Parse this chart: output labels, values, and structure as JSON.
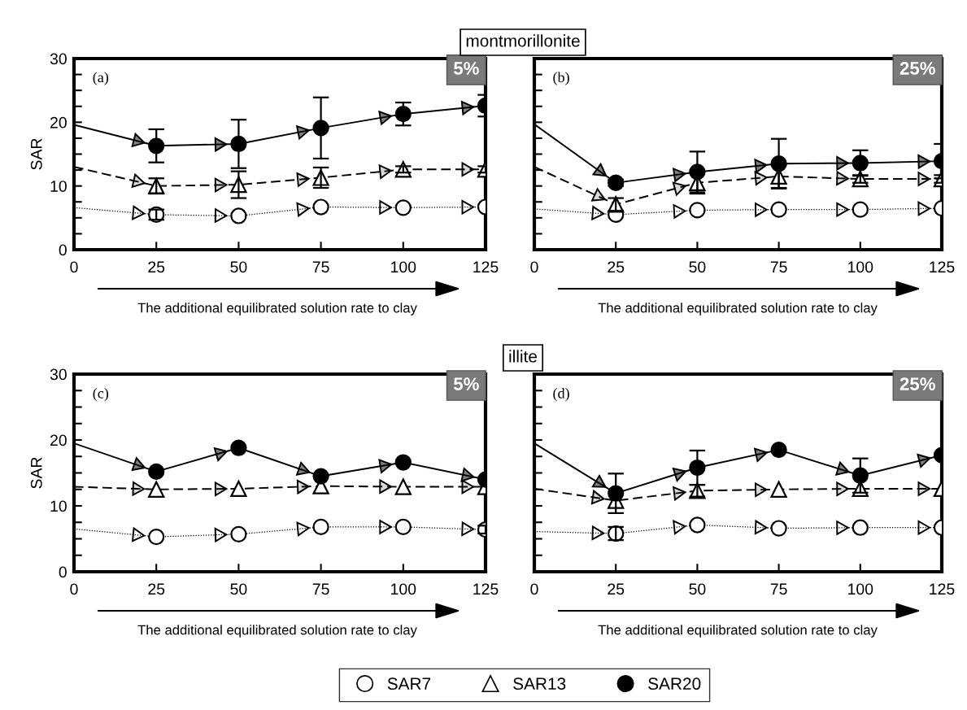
{
  "chart_data": [
    {
      "type": "line",
      "xlabel": "The additional equilibrated solution rate to clay",
      "ylabel": "SAR",
      "annotations": [
        "(a)",
        "5%",
        "montmorillonite"
      ],
      "x": [
        0,
        25,
        50,
        75,
        100,
        125
      ],
      "xlim": [
        0,
        125
      ],
      "xticks": [
        0,
        25,
        50,
        75,
        100,
        125
      ],
      "ylim": [
        0,
        30
      ],
      "yticks": [
        0,
        {
          "value": 2.5,
          "label": null
        },
        {
          "value": 5,
          "label": null
        },
        {
          "value": 7.5,
          "label": null
        },
        10,
        {
          "value": 12.5,
          "label": null
        },
        {
          "value": 15,
          "label": null
        },
        {
          "value": 17.5,
          "label": null
        },
        20,
        {
          "value": 22.5,
          "label": null
        },
        {
          "value": 25,
          "label": null
        },
        {
          "value": 27.5,
          "label": null
        },
        30
      ],
      "grid": false,
      "legend": false,
      "series": [
        {
          "color": "#ffffff",
          "marker": "circle",
          "line_style": "dotted",
          "values": [
            6.6,
            5.5,
            5.3,
            6.7,
            6.6,
            6.7
          ],
          "errors": [
            null,
            0.8,
            null,
            null,
            null,
            null
          ]
        },
        {
          "color": "#ffffff",
          "marker": "triangle",
          "line_style": "dashed",
          "values": [
            13.0,
            10.0,
            10.2,
            11.3,
            12.6,
            12.6
          ],
          "errors": [
            null,
            1.2,
            2.1,
            1.6,
            0.5,
            0.5
          ]
        },
        {
          "color": "#000000",
          "marker": "circle",
          "line_style": "solid",
          "values": [
            19.6,
            16.3,
            16.6,
            19.1,
            21.3,
            22.6
          ],
          "errors": [
            null,
            2.6,
            3.8,
            4.8,
            1.8,
            1.7
          ]
        }
      ]
    },
    {
      "type": "line",
      "xlabel": "The additional equilibrated solution rate to clay",
      "annotations": [
        "(b)",
        "25%"
      ],
      "x": [
        0,
        25,
        50,
        75,
        100,
        125
      ],
      "xlim": [
        0,
        125
      ],
      "xticks": [
        0,
        25,
        50,
        75,
        100,
        125
      ],
      "ylim": [
        0,
        30
      ],
      "yticks": [
        0,
        {
          "value": 2.5,
          "label": null
        },
        {
          "value": 5,
          "label": null
        },
        {
          "value": 7.5,
          "label": null
        },
        10,
        {
          "value": 12.5,
          "label": null
        },
        {
          "value": 15,
          "label": null
        },
        {
          "value": 17.5,
          "label": null
        },
        20,
        {
          "value": 22.5,
          "label": null
        },
        {
          "value": 25,
          "label": null
        },
        {
          "value": 27.5,
          "label": null
        },
        30
      ],
      "tick_labels": "x",
      "grid": false,
      "legend": false,
      "series": [
        {
          "color": "#ffffff",
          "marker": "circle",
          "line_style": "dotted",
          "values": [
            6.4,
            5.5,
            6.2,
            6.3,
            6.3,
            6.5
          ]
        },
        {
          "color": "#ffffff",
          "marker": "triangle",
          "line_style": "dashed",
          "values": [
            13.0,
            7.1,
            10.5,
            11.5,
            11.1,
            11.1
          ],
          "errors": [
            null,
            1.0,
            1.7,
            1.8,
            0.6,
            0.6
          ]
        },
        {
          "color": "#000000",
          "marker": "circle",
          "line_style": "solid",
          "values": [
            19.7,
            10.5,
            12.2,
            13.5,
            13.6,
            13.9
          ],
          "errors": [
            null,
            0.5,
            3.2,
            3.9,
            2.0,
            2.7
          ]
        }
      ]
    },
    {
      "type": "line",
      "xlabel": "The additional equilibrated solution rate to clay",
      "ylabel": "SAR",
      "annotations": [
        "(c)",
        "5%",
        "illite"
      ],
      "x": [
        0,
        25,
        50,
        75,
        100,
        125
      ],
      "xlim": [
        0,
        125
      ],
      "xticks": [
        0,
        25,
        50,
        75,
        100,
        125
      ],
      "ylim": [
        0,
        30
      ],
      "yticks": [
        0,
        {
          "value": 2.5,
          "label": null
        },
        {
          "value": 5,
          "label": null
        },
        {
          "value": 7.5,
          "label": null
        },
        10,
        {
          "value": 12.5,
          "label": null
        },
        {
          "value": 15,
          "label": null
        },
        {
          "value": 17.5,
          "label": null
        },
        20,
        {
          "value": 22.5,
          "label": null
        },
        {
          "value": 25,
          "label": null
        },
        {
          "value": 27.5,
          "label": null
        },
        30
      ],
      "grid": false,
      "legend": false,
      "series": [
        {
          "color": "#ffffff",
          "marker": "circle",
          "line_style": "dotted",
          "values": [
            6.5,
            5.3,
            5.7,
            6.8,
            6.8,
            6.4
          ],
          "errors": [
            null,
            null,
            null,
            null,
            null,
            0.6
          ]
        },
        {
          "color": "#ffffff",
          "marker": "triangle",
          "line_style": "dashed",
          "values": [
            12.9,
            12.5,
            12.6,
            13.0,
            12.9,
            12.9
          ]
        },
        {
          "color": "#000000",
          "marker": "circle",
          "line_style": "solid",
          "values": [
            19.5,
            15.2,
            18.8,
            14.5,
            16.6,
            14.0
          ]
        }
      ]
    },
    {
      "type": "line",
      "xlabel": "The additional equilibrated solution rate to clay",
      "annotations": [
        "(d)",
        "25%"
      ],
      "x": [
        0,
        25,
        50,
        75,
        100,
        125
      ],
      "xlim": [
        0,
        125
      ],
      "xticks": [
        0,
        25,
        50,
        75,
        100,
        125
      ],
      "ylim": [
        0,
        30
      ],
      "yticks": [
        0,
        {
          "value": 2.5,
          "label": null
        },
        {
          "value": 5,
          "label": null
        },
        {
          "value": 7.5,
          "label": null
        },
        10,
        {
          "value": 12.5,
          "label": null
        },
        {
          "value": 15,
          "label": null
        },
        {
          "value": 17.5,
          "label": null
        },
        20,
        {
          "value": 22.5,
          "label": null
        },
        {
          "value": 25,
          "label": null
        },
        {
          "value": 27.5,
          "label": null
        },
        30
      ],
      "tick_labels": "x",
      "grid": false,
      "legend": "bottom",
      "series": [
        {
          "name": "SAR7",
          "color": "#ffffff",
          "marker": "circle",
          "line_style": "dotted",
          "values": [
            6.1,
            5.8,
            7.1,
            6.6,
            6.7,
            6.7
          ],
          "errors": [
            null,
            1.0,
            null,
            null,
            null,
            null
          ]
        },
        {
          "name": "SAR13",
          "color": "#ffffff",
          "marker": "triangle",
          "line_style": "dashed",
          "values": [
            12.6,
            10.8,
            12.3,
            12.5,
            12.6,
            12.6
          ],
          "errors": [
            null,
            null,
            0.9,
            null,
            null,
            null
          ]
        },
        {
          "name": "SAR20",
          "color": "#000000",
          "marker": "circle",
          "line_style": "solid",
          "values": [
            19.5,
            11.9,
            15.8,
            18.5,
            14.6,
            17.7
          ],
          "errors": [
            null,
            3.0,
            2.6,
            null,
            2.6,
            null
          ]
        }
      ]
    }
  ]
}
